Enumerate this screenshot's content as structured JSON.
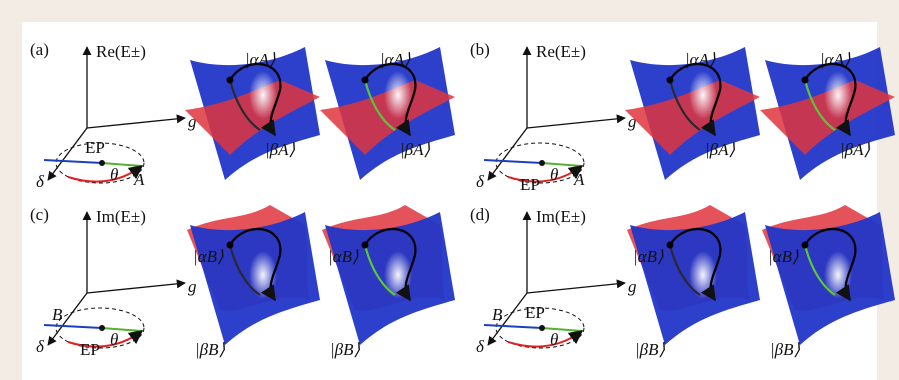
{
  "figure": {
    "panels": [
      {
        "label": "(a)",
        "axis_label": "Re(E±)",
        "g": "g",
        "delta": "δ",
        "ep": "EP",
        "theta": "θ",
        "point": "A",
        "state_1": "|αA⟩",
        "state_2": "|βA⟩"
      },
      {
        "label": "(b)",
        "axis_label": "Re(E±)",
        "g": "g",
        "delta": "δ",
        "ep": "EP",
        "theta": "θ",
        "point": "A",
        "state_1": "|αA⟩",
        "state_2": "|βA⟩"
      },
      {
        "label": "(c)",
        "axis_label": "Im(E±)",
        "g": "g",
        "delta": "δ",
        "ep": "EP",
        "theta": "θ",
        "point": "B",
        "state_1": "|αB⟩",
        "state_2": "|βB⟩"
      },
      {
        "label": "(d)",
        "axis_label": "Im(E±)",
        "g": "g",
        "delta": "δ",
        "ep": "EP",
        "theta": "θ",
        "point": "B",
        "state_1": "|αB⟩",
        "state_2": "|βB⟩"
      }
    ]
  }
}
